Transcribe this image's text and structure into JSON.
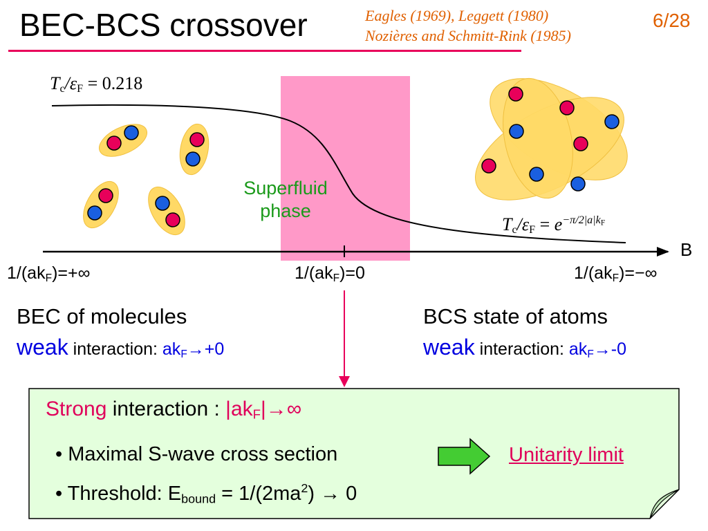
{
  "header": {
    "title": "BEC-BCS crossover",
    "refs_line1": "Eagles (1969),  Leggett (1980)",
    "refs_line2": "Nozières and Schmitt-Rink (1985)",
    "page_number": "6/28"
  },
  "diagram": {
    "tc_left_lhs": "T",
    "tc_left_value": "= 0.218",
    "tc_right_exp": "−π/2|a|k",
    "superfluid_line1": "Superfluid",
    "superfluid_line2": "phase",
    "axis_label": "B",
    "axis_left": "=+∞",
    "axis_mid": "=0",
    "axis_right": "=−∞"
  },
  "bec": {
    "heading": "BEC of molecules",
    "weak": "weak",
    "interaction": "interaction:",
    "limit": "→+0"
  },
  "bcs": {
    "heading": "BCS state of atoms",
    "weak": "weak",
    "interaction": "interaction:",
    "limit": "→-0"
  },
  "note": {
    "strong": "Strong",
    "interaction": "interaction :",
    "limit": "|→∞",
    "bullet1": "• Maximal S-wave cross section",
    "unitarity": "Unitarity limit",
    "bullet2_prefix": "• Threshold:  E",
    "bullet2_sub": "bound",
    "bullet2_mid": " = 1/(2ma",
    "bullet2_sup": "2",
    "bullet2_end": ") → 0"
  },
  "colors": {
    "accent_line": "#e8005a",
    "refs_text": "#e06000",
    "pink_band": "#ff99c8",
    "molecule_fill": "#ffd966",
    "red_atom": "#e8005a",
    "blue_atom": "#1a5fe0",
    "superfluid_text": "#1a9a1a",
    "weak_text": "#0000e0",
    "note_fill": "#e4ffdd",
    "arrow_green": "#44cc33"
  }
}
